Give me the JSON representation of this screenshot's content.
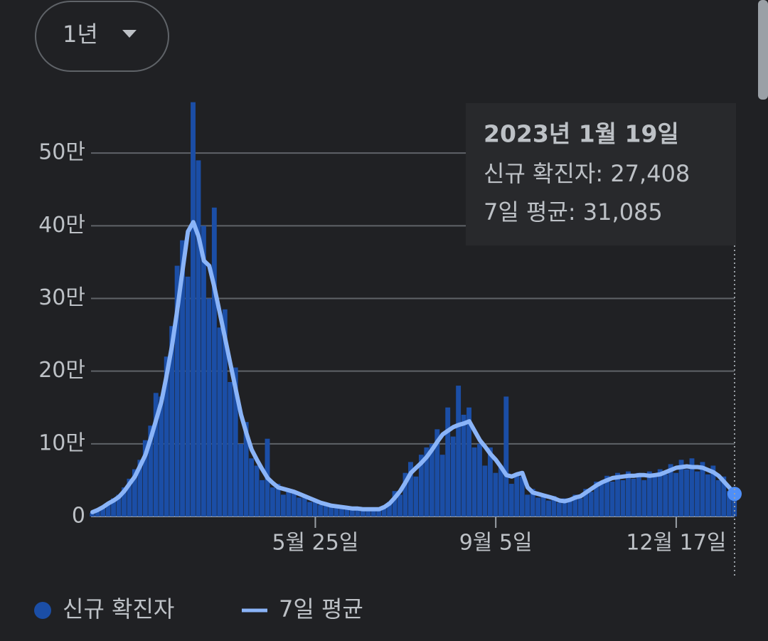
{
  "dropdown": "1년",
  "chart_data": {
    "type": "bar_line",
    "tooltip": {
      "title": "2023년 1월 19일",
      "lines": [
        "신규 확진자: 27,408",
        "7일 평균: 31,085"
      ]
    },
    "categories": [
      null,
      null,
      null,
      null,
      null,
      null,
      null,
      null,
      null,
      null,
      null,
      null,
      null,
      null,
      null,
      null,
      null,
      null,
      null,
      null,
      null,
      null,
      null,
      null,
      null,
      null,
      null,
      null,
      null,
      null,
      null,
      null,
      null,
      null,
      null,
      null,
      null,
      null,
      null,
      null,
      null,
      null,
      "5월 25일",
      null,
      null,
      null,
      null,
      null,
      null,
      null,
      null,
      null,
      null,
      null,
      null,
      null,
      null,
      null,
      null,
      null,
      null,
      null,
      null,
      null,
      null,
      null,
      null,
      null,
      null,
      null,
      null,
      null,
      null,
      null,
      null,
      null,
      "9월 5일",
      null,
      null,
      null,
      null,
      null,
      null,
      null,
      null,
      null,
      null,
      null,
      null,
      null,
      null,
      null,
      null,
      null,
      null,
      null,
      null,
      null,
      null,
      null,
      null,
      null,
      null,
      null,
      null,
      null,
      null,
      null,
      null,
      null,
      "12월 17일",
      null,
      null,
      null,
      null,
      null,
      null,
      null,
      null,
      null,
      null,
      null
    ],
    "series": [
      {
        "name": "신규 확진자",
        "color": "#1b4ea6",
        "values": [
          5000,
          8000,
          12000,
          17000,
          25000,
          30000,
          40000,
          52000,
          65000,
          78000,
          105000,
          125000,
          170000,
          165000,
          220000,
          262000,
          345000,
          380000,
          330000,
          570000,
          490000,
          400000,
          300000,
          425000,
          260000,
          285000,
          185000,
          205000,
          100000,
          130000,
          80000,
          70000,
          50000,
          107000,
          40000,
          45000,
          30000,
          38000,
          32000,
          26000,
          30000,
          20000,
          24000,
          16000,
          18000,
          13000,
          15000,
          11000,
          13000,
          9000,
          12000,
          8000,
          11000,
          9000,
          12000,
          15000,
          20000,
          35000,
          30000,
          60000,
          75000,
          55000,
          85000,
          95000,
          100000,
          120000,
          85000,
          150000,
          110000,
          180000,
          140000,
          150000,
          95000,
          100000,
          70000,
          95000,
          60000,
          70000,
          165000,
          45000,
          60000,
          55000,
          30000,
          38000,
          26000,
          30000,
          22000,
          28000,
          19000,
          25000,
          22000,
          30000,
          25000,
          38000,
          34000,
          48000,
          45000,
          56000,
          48000,
          60000,
          50000,
          62000,
          52000,
          60000,
          50000,
          62000,
          55000,
          65000,
          58000,
          72000,
          60000,
          78000,
          65000,
          80000,
          62000,
          75000,
          58000,
          70000,
          50000,
          55000,
          35000,
          27408
        ]
      },
      {
        "name": "7일 평균",
        "color": "#8ab4f8",
        "values": [
          6000,
          9000,
          13000,
          18000,
          22000,
          27000,
          35000,
          45000,
          55000,
          70000,
          85000,
          108000,
          133000,
          158000,
          195000,
          235000,
          285000,
          340000,
          392000,
          405000,
          385000,
          352000,
          345000,
          315000,
          280000,
          245000,
          210000,
          175000,
          140000,
          115000,
          92000,
          78000,
          65000,
          53000,
          46000,
          40000,
          38000,
          36000,
          34000,
          31000,
          28000,
          25000,
          22000,
          19000,
          17000,
          15000,
          14000,
          13000,
          12000,
          11000,
          11000,
          10000,
          10000,
          10000,
          10000,
          13000,
          18000,
          26000,
          35000,
          47000,
          60000,
          67000,
          74000,
          82000,
          92000,
          103000,
          113000,
          118000,
          123000,
          126000,
          128000,
          131000,
          118000,
          105000,
          96000,
          86000,
          78000,
          68000,
          57000,
          55000,
          58000,
          60000,
          40000,
          33000,
          31000,
          29000,
          27000,
          25000,
          22000,
          21000,
          23000,
          26000,
          28000,
          33000,
          38000,
          43000,
          47000,
          50000,
          53000,
          54000,
          55000,
          56000,
          56000,
          57000,
          57000,
          56000,
          57000,
          58000,
          61000,
          64000,
          67000,
          68000,
          69000,
          68000,
          68000,
          67000,
          64000,
          61000,
          56000,
          48000,
          40000,
          31085
        ]
      }
    ],
    "ylim": [
      0,
      600000
    ],
    "yticks": [
      0,
      {
        "value": 100000,
        "label": "10만"
      },
      {
        "value": 200000,
        "label": "20만"
      },
      {
        "value": 300000,
        "label": "30만"
      },
      {
        "value": 400000,
        "label": "40만"
      },
      {
        "value": 500000,
        "label": "50만"
      }
    ],
    "grid": true
  }
}
